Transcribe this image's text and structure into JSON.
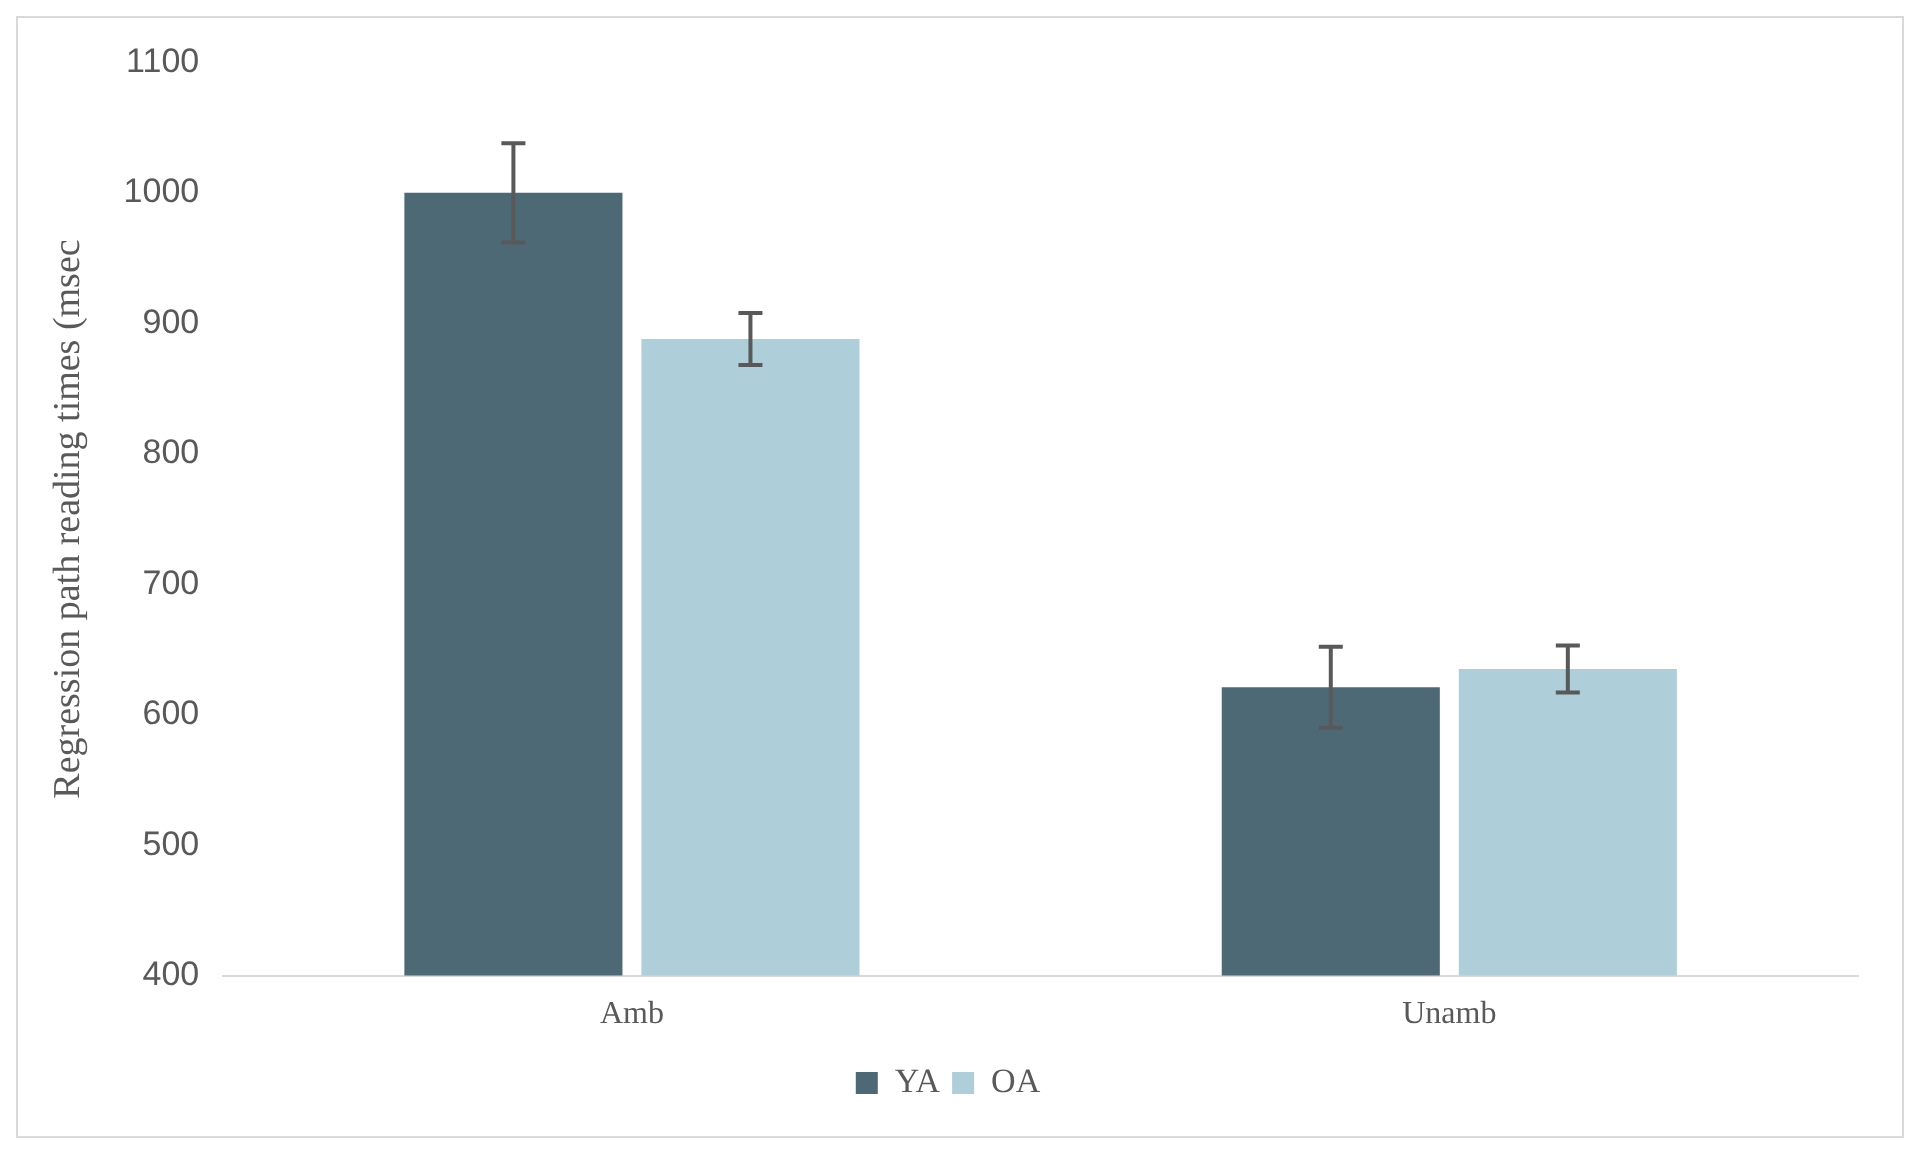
{
  "chart_data": {
    "type": "bar",
    "ylabel": "Regression path reading times (msec",
    "categories": [
      "Amb",
      "Unamb"
    ],
    "series": [
      {
        "name": "YA",
        "color": "#4d6976",
        "values": [
          1000,
          621
        ],
        "errors": [
          38,
          31
        ]
      },
      {
        "name": "OA",
        "color": "#aecfda",
        "values": [
          888,
          635
        ],
        "errors": [
          20,
          18
        ]
      }
    ],
    "ylim": [
      400,
      1100
    ],
    "yticks": [
      400,
      500,
      600,
      700,
      800,
      900,
      1000,
      1100
    ],
    "grid": false,
    "legend": "bottom"
  }
}
